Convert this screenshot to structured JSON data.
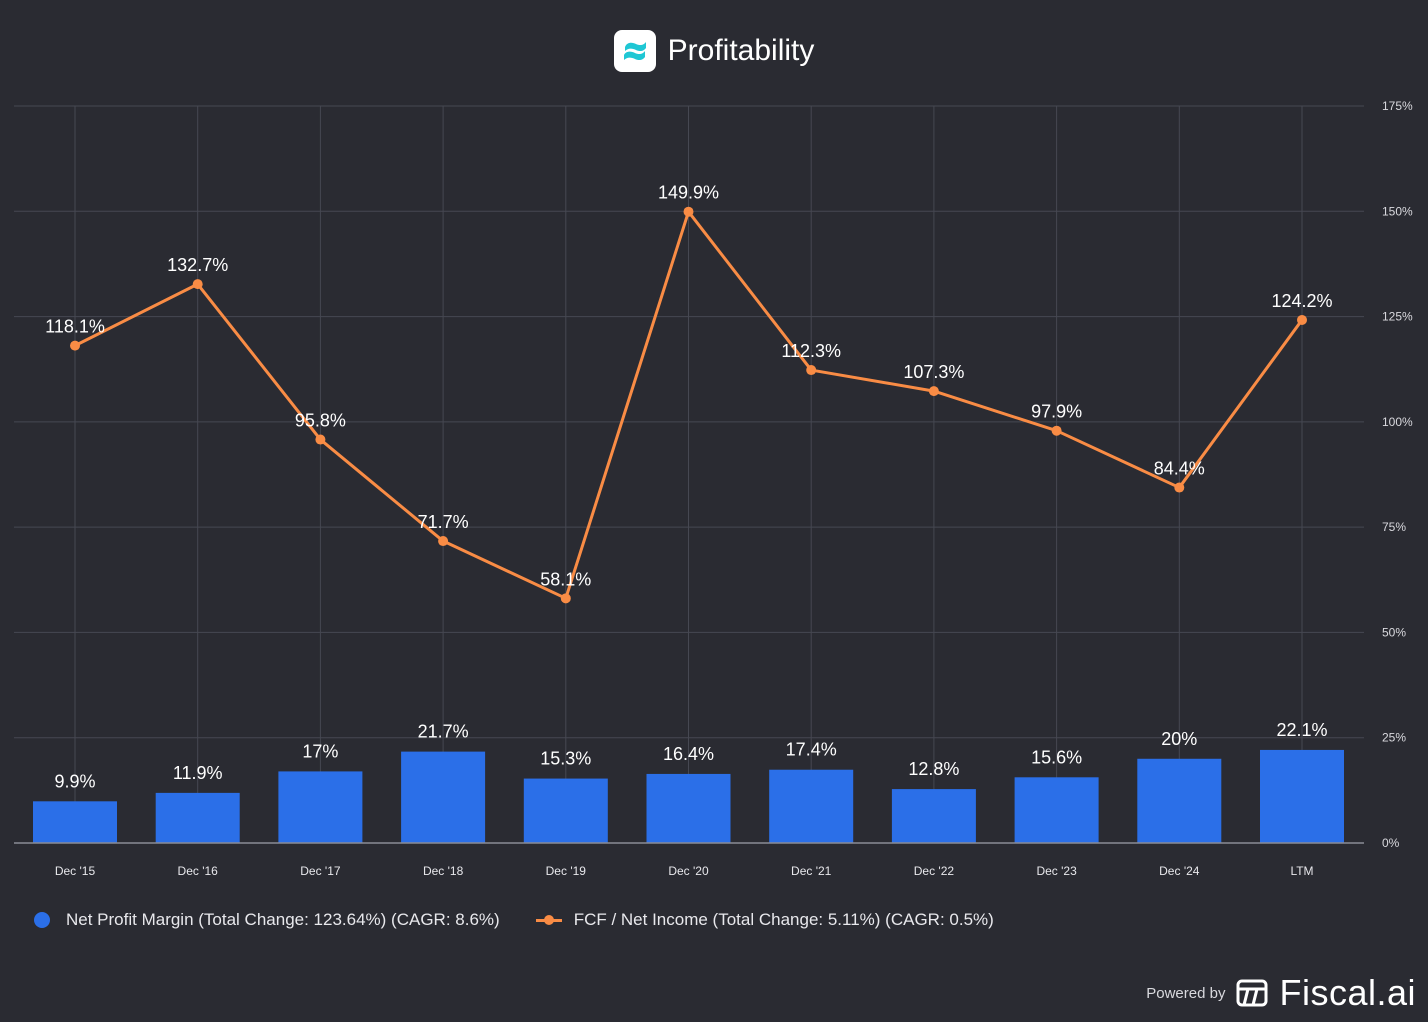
{
  "header": {
    "title": "Profitability",
    "logo_icon": "fiscal-logo-icon"
  },
  "chart_data": {
    "type": "bar+line",
    "title": "Profitability",
    "categories": [
      "Dec '15",
      "Dec '16",
      "Dec '17",
      "Dec '18",
      "Dec '19",
      "Dec '20",
      "Dec '21",
      "Dec '22",
      "Dec '23",
      "Dec '24",
      "LTM"
    ],
    "y_axis": {
      "min": 0,
      "max": 175,
      "ticks": [
        "0%",
        "25%",
        "50%",
        "75%",
        "100%",
        "125%",
        "150%",
        "175%"
      ],
      "position": "right",
      "grid": true
    },
    "series": [
      {
        "name": "Net Profit Margin (Total Change: 123.64%) (CAGR: 8.6%)",
        "kind": "bar",
        "color": "#2b6fe8",
        "values": [
          9.9,
          11.9,
          17,
          21.7,
          15.3,
          16.4,
          17.4,
          12.8,
          15.6,
          20,
          22.1
        ],
        "labels": [
          "9.9%",
          "11.9%",
          "17%",
          "21.7%",
          "15.3%",
          "16.4%",
          "17.4%",
          "12.8%",
          "15.6%",
          "20%",
          "22.1%"
        ]
      },
      {
        "name": "FCF / Net Income (Total Change: 5.11%) (CAGR: 0.5%)",
        "kind": "line",
        "color": "#f98c45",
        "values": [
          118.1,
          132.7,
          95.8,
          71.7,
          58.1,
          149.9,
          112.3,
          107.3,
          97.9,
          84.4,
          124.2
        ],
        "labels": [
          "118.1%",
          "132.7%",
          "95.8%",
          "71.7%",
          "58.1%",
          "149.9%",
          "112.3%",
          "107.3%",
          "97.9%",
          "84.4%",
          "124.2%"
        ]
      }
    ]
  },
  "legend": {
    "bar_label": "Net Profit Margin (Total Change: 123.64%) (CAGR: 8.6%)",
    "line_label": "FCF / Net Income (Total Change: 5.11%) (CAGR: 0.5%)"
  },
  "footer": {
    "powered_by": "Powered by",
    "brand": "Fiscal.ai",
    "brand_icon": "fiscal-brand-icon"
  }
}
